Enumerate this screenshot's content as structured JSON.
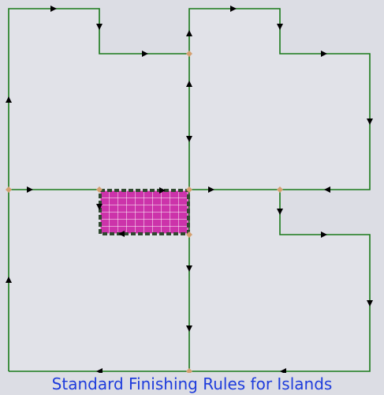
{
  "caption": "Standard Finishing Rules for Islands",
  "colors": {
    "background": "#dcdde4",
    "region_fill": "#e1e2e8",
    "path": "#1a7a1a",
    "arrow": "#000000",
    "node": "#d4a070",
    "island_fill": "#cc33aa",
    "island_grid": "#ffffff",
    "island_border": "#2f4a2f",
    "caption": "#1e3cdc"
  }
}
